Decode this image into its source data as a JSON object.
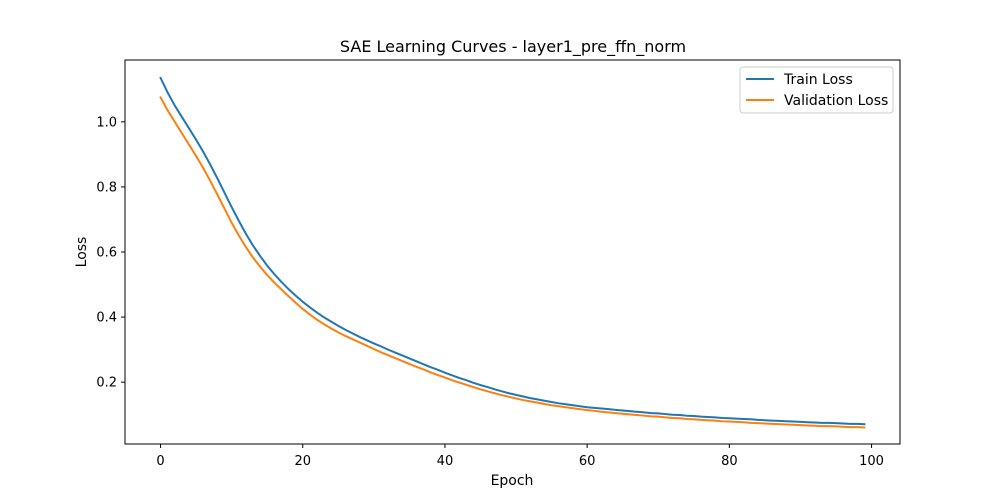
{
  "chart_data": {
    "type": "line",
    "title": "SAE Learning Curves - layer1_pre_ffn_norm",
    "xlabel": "Epoch",
    "ylabel": "Loss",
    "xlim": [
      -5,
      104
    ],
    "ylim": [
      0.01,
      1.19
    ],
    "x_ticks": [
      0,
      20,
      40,
      60,
      80,
      100
    ],
    "y_ticks": [
      0.2,
      0.4,
      0.6,
      0.8,
      1.0
    ],
    "x_tick_labels": [
      "0",
      "20",
      "40",
      "60",
      "80",
      "100"
    ],
    "y_tick_labels": [
      "0.2",
      "0.4",
      "0.6",
      "0.8",
      "1.0"
    ],
    "grid": false,
    "legend": "top-right",
    "x": [
      0,
      1,
      2,
      3,
      4,
      5,
      6,
      7,
      8,
      9,
      10,
      11,
      12,
      13,
      14,
      15,
      16,
      17,
      18,
      19,
      20,
      21,
      22,
      23,
      24,
      25,
      26,
      27,
      28,
      29,
      30,
      31,
      32,
      33,
      34,
      35,
      36,
      37,
      38,
      39,
      40,
      41,
      42,
      43,
      44,
      45,
      46,
      47,
      48,
      49,
      50,
      51,
      52,
      53,
      54,
      55,
      56,
      57,
      58,
      59,
      60,
      61,
      62,
      63,
      64,
      65,
      66,
      67,
      68,
      69,
      70,
      71,
      72,
      73,
      74,
      75,
      76,
      77,
      78,
      79,
      80,
      81,
      82,
      83,
      84,
      85,
      86,
      87,
      88,
      89,
      90,
      91,
      92,
      93,
      94,
      95,
      96,
      97,
      98,
      99
    ],
    "series": [
      {
        "name": "Train Loss",
        "color": "#1f77b4",
        "values": [
          1.135,
          1.09,
          1.05,
          1.015,
          0.98,
          0.945,
          0.908,
          0.868,
          0.826,
          0.782,
          0.738,
          0.696,
          0.656,
          0.62,
          0.588,
          0.558,
          0.532,
          0.508,
          0.486,
          0.466,
          0.447,
          0.43,
          0.414,
          0.399,
          0.386,
          0.373,
          0.361,
          0.35,
          0.339,
          0.329,
          0.319,
          0.31,
          0.3,
          0.291,
          0.282,
          0.273,
          0.264,
          0.255,
          0.246,
          0.238,
          0.229,
          0.221,
          0.213,
          0.206,
          0.198,
          0.191,
          0.185,
          0.178,
          0.172,
          0.166,
          0.161,
          0.156,
          0.151,
          0.147,
          0.143,
          0.139,
          0.135,
          0.132,
          0.129,
          0.126,
          0.123,
          0.121,
          0.119,
          0.117,
          0.115,
          0.113,
          0.111,
          0.109,
          0.107,
          0.105,
          0.104,
          0.102,
          0.1,
          0.099,
          0.097,
          0.096,
          0.094,
          0.093,
          0.092,
          0.09,
          0.089,
          0.088,
          0.087,
          0.086,
          0.084,
          0.083,
          0.082,
          0.081,
          0.08,
          0.079,
          0.078,
          0.077,
          0.076,
          0.075,
          0.075,
          0.074,
          0.073,
          0.072,
          0.072,
          0.071
        ]
      },
      {
        "name": "Validation Loss",
        "color": "#ff7f0e",
        "values": [
          1.075,
          1.035,
          1.0,
          0.965,
          0.93,
          0.895,
          0.858,
          0.818,
          0.776,
          0.733,
          0.69,
          0.651,
          0.615,
          0.583,
          0.555,
          0.529,
          0.506,
          0.485,
          0.464,
          0.444,
          0.425,
          0.408,
          0.392,
          0.378,
          0.365,
          0.353,
          0.342,
          0.332,
          0.322,
          0.312,
          0.302,
          0.292,
          0.283,
          0.274,
          0.265,
          0.256,
          0.247,
          0.239,
          0.23,
          0.222,
          0.214,
          0.206,
          0.199,
          0.192,
          0.185,
          0.178,
          0.172,
          0.166,
          0.16,
          0.155,
          0.15,
          0.145,
          0.141,
          0.137,
          0.133,
          0.129,
          0.126,
          0.123,
          0.12,
          0.117,
          0.114,
          0.112,
          0.109,
          0.107,
          0.105,
          0.103,
          0.101,
          0.099,
          0.097,
          0.095,
          0.094,
          0.092,
          0.09,
          0.089,
          0.087,
          0.086,
          0.084,
          0.083,
          0.082,
          0.08,
          0.079,
          0.078,
          0.077,
          0.075,
          0.074,
          0.073,
          0.072,
          0.071,
          0.07,
          0.069,
          0.068,
          0.067,
          0.066,
          0.065,
          0.065,
          0.064,
          0.063,
          0.062,
          0.062,
          0.061
        ]
      }
    ]
  }
}
